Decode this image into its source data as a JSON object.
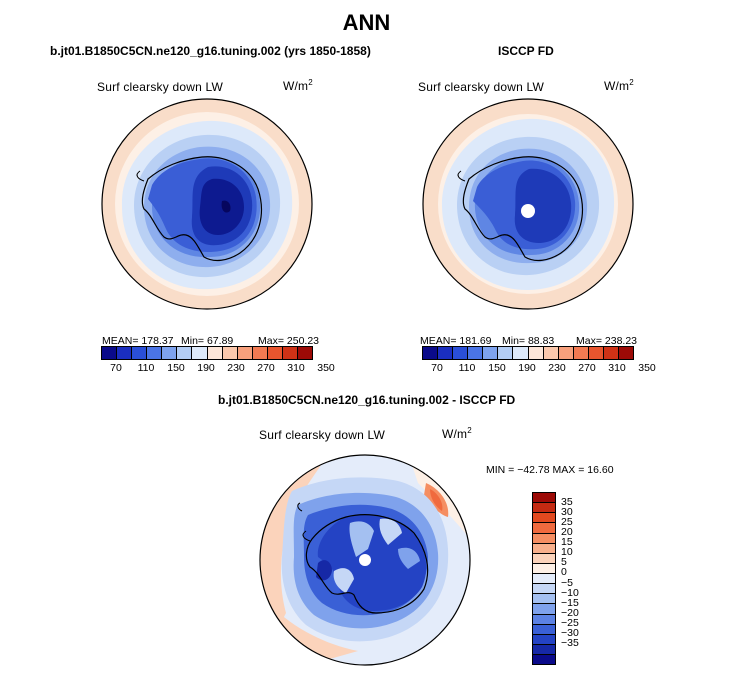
{
  "header": {
    "title": "ANN"
  },
  "panels": {
    "left": {
      "title": "b.jt01.B1850C5CN.ne120_g16.tuning.002 (yrs 1850-1858)",
      "variable": "Surf clearsky down LW",
      "units_base": "W/m",
      "units_exp": "2",
      "stats": {
        "mean": "MEAN= 178.37",
        "min": "Min=  67.89",
        "max": "Max= 250.23"
      }
    },
    "right": {
      "title": "ISCCP FD",
      "variable": "Surf clearsky down LW",
      "units_base": "W/m",
      "units_exp": "2",
      "stats": {
        "mean": "MEAN= 181.69",
        "min": "Min=  88.83",
        "max": "Max= 238.23"
      }
    },
    "diff": {
      "title": "b.jt01.B1850C5CN.ne120_g16.tuning.002 - ISCCP FD",
      "variable": "Surf clearsky down LW",
      "units_base": "W/m",
      "units_exp": "2",
      "minmax": "MIN = −42.78 MAX =  16.60"
    }
  },
  "colorbar_abs": {
    "colors": [
      "#0a0a8a",
      "#1a2ec0",
      "#2a4fd8",
      "#4a74e6",
      "#7ea3ef",
      "#b3cdf5",
      "#dde9fa",
      "#fde6d8",
      "#fbc8ac",
      "#f7a07c",
      "#f27a52",
      "#e8552e",
      "#cf3216",
      "#9c0a06"
    ],
    "ticks": [
      "70",
      "110",
      "150",
      "190",
      "230",
      "270",
      "310",
      "350"
    ]
  },
  "colorbar_diff": {
    "colors": [
      "#9c0a06",
      "#c42a12",
      "#e2491f",
      "#f06a3e",
      "#f58e62",
      "#f8b08c",
      "#fbd3bb",
      "#fdf0e6",
      "#e4ecfa",
      "#c5d7f6",
      "#a4c0f1",
      "#7fa2ec",
      "#5c82e4",
      "#3a60d6",
      "#2443c4",
      "#1628a6",
      "#0a0a8a"
    ],
    "ticks": [
      "35",
      "30",
      "25",
      "20",
      "15",
      "10",
      "5",
      "0",
      "−5",
      "−10",
      "−15",
      "−20",
      "−25",
      "−30",
      "−35"
    ]
  }
}
